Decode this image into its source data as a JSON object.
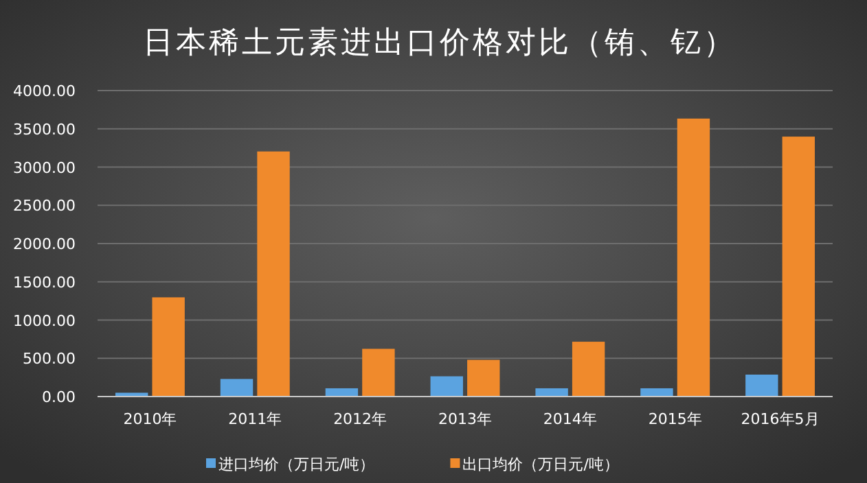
{
  "chart_data": {
    "type": "bar",
    "title": "日本稀土元素进出口价格对比（铕、钇）",
    "categories": [
      "2010年",
      "2011年",
      "2012年",
      "2013年",
      "2014年",
      "2015年",
      "2016年5月"
    ],
    "series": [
      {
        "name": "进口均价（万日元/吨）",
        "color": "#5ba3e0",
        "values": [
          50,
          230,
          108,
          265,
          108,
          108,
          287
        ]
      },
      {
        "name": "出口均价（万日元/吨）",
        "color": "#f08a2c",
        "values": [
          1297,
          3204,
          624,
          480,
          717,
          3634,
          3398
        ]
      }
    ],
    "ylim": [
      0,
      4000
    ],
    "yticks": [
      {
        "value": 0,
        "label": "0.00"
      },
      {
        "value": 500,
        "label": "500.00"
      },
      {
        "value": 1000,
        "label": "1000.00"
      },
      {
        "value": 1500,
        "label": "1500.00"
      },
      {
        "value": 2000,
        "label": "2000.00"
      },
      {
        "value": 2500,
        "label": "2500.00"
      },
      {
        "value": 3000,
        "label": "3000.00"
      },
      {
        "value": 3500,
        "label": "3500.00"
      },
      {
        "value": 4000,
        "label": "4000.00"
      }
    ],
    "grid": "y",
    "legend": "bottom"
  }
}
